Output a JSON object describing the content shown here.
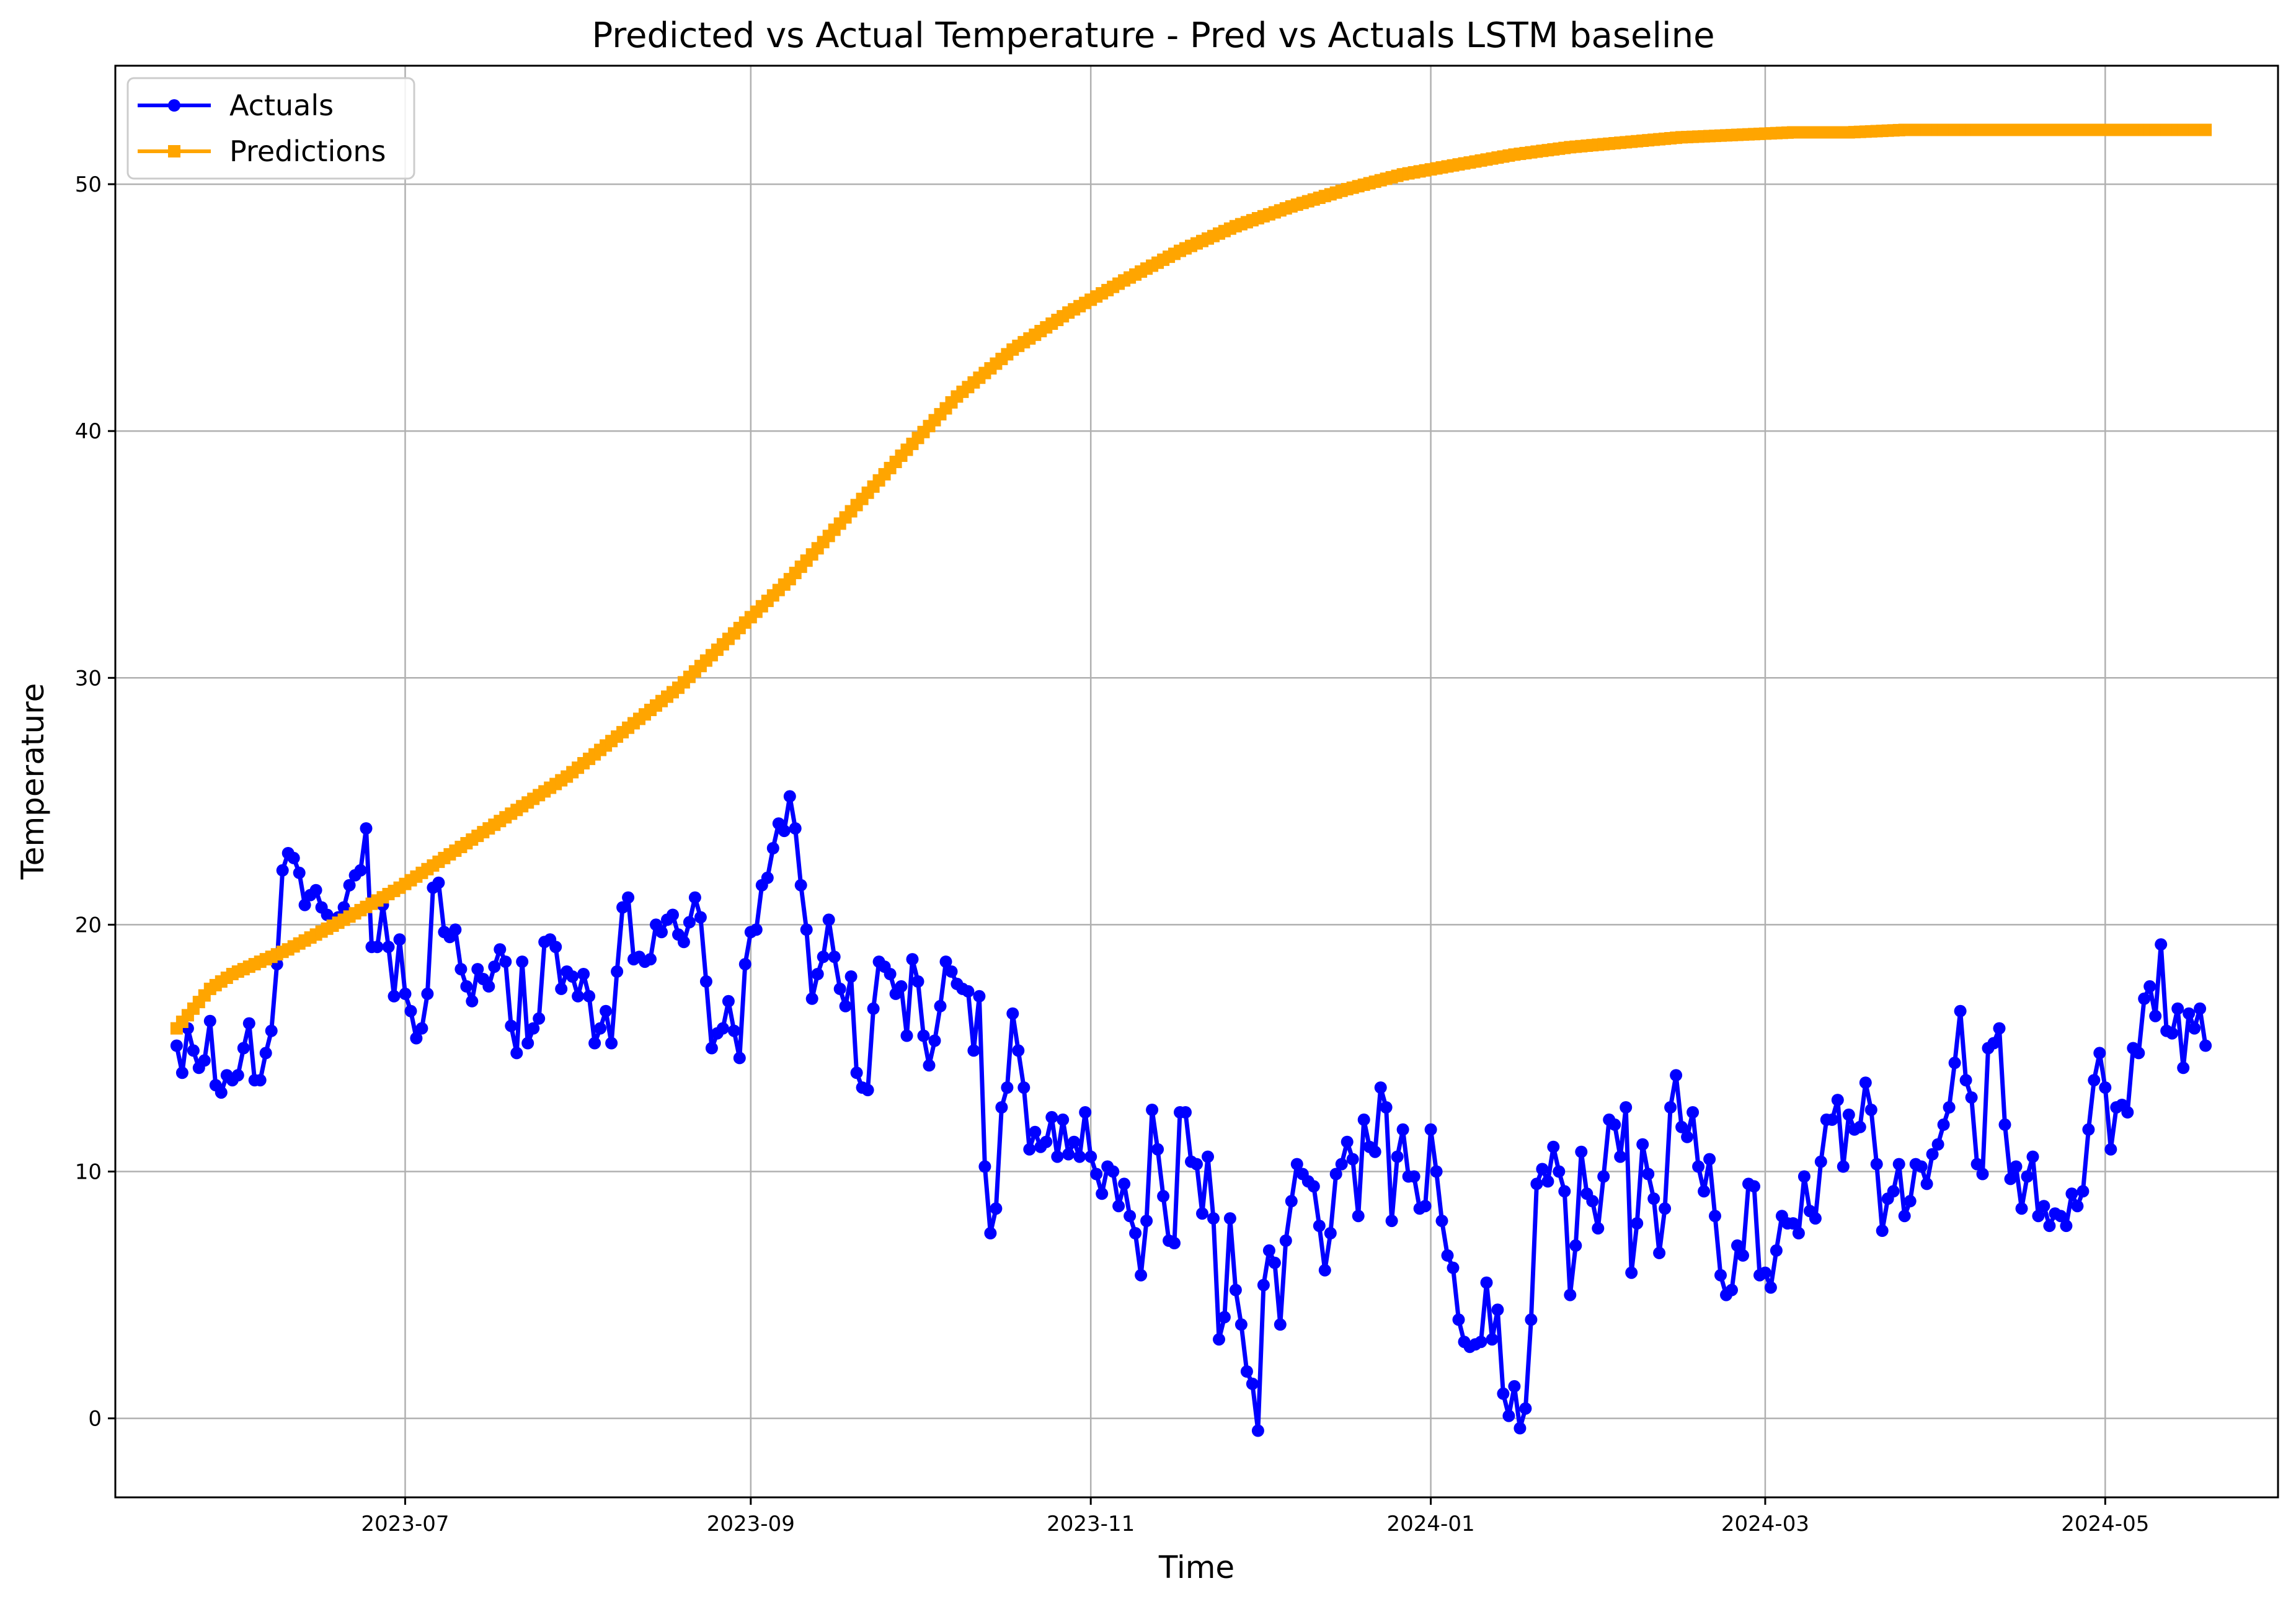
{
  "chart_data": {
    "type": "line",
    "title": "Predicted vs Actual Temperature - Pred vs Actuals LSTM baseline",
    "xlabel": "Time",
    "ylabel": "Temperature",
    "x_start": "2023-05-21",
    "x_end": "2024-05-21",
    "xlim": [
      "2023-05-10",
      "2024-06-01"
    ],
    "ylim": [
      -3.2,
      54.8
    ],
    "x_ticks": [
      {
        "date": "2023-07-01",
        "label": "2023-07"
      },
      {
        "date": "2023-09-01",
        "label": "2023-09"
      },
      {
        "date": "2023-11-01",
        "label": "2023-11"
      },
      {
        "date": "2024-01-01",
        "label": "2024-01"
      },
      {
        "date": "2024-03-01",
        "label": "2024-03"
      },
      {
        "date": "2024-05-01",
        "label": "2024-05"
      }
    ],
    "y_ticks": [
      0,
      10,
      20,
      30,
      40,
      50
    ],
    "grid": true,
    "legend_position": "top-left",
    "series": [
      {
        "name": "Actuals",
        "color": "#0000ff",
        "marker": "circle",
        "values": [
          15.1,
          14.0,
          15.8,
          14.9,
          14.2,
          14.5,
          16.1,
          13.5,
          13.2,
          13.9,
          13.7,
          13.9,
          15.0,
          16.0,
          13.7,
          13.7,
          14.8,
          15.7,
          18.4,
          22.2,
          22.9,
          22.7,
          22.1,
          20.8,
          21.2,
          21.4,
          20.7,
          20.4,
          20.2,
          20.3,
          20.7,
          21.6,
          22.0,
          22.2,
          23.9,
          19.1,
          19.1,
          20.8,
          19.1,
          17.1,
          19.4,
          17.2,
          16.5,
          15.4,
          15.8,
          17.2,
          21.5,
          21.7,
          19.7,
          19.5,
          19.8,
          18.2,
          17.5,
          16.9,
          18.2,
          17.8,
          17.5,
          18.3,
          19.0,
          18.5,
          15.9,
          14.8,
          18.5,
          15.2,
          15.8,
          16.2,
          19.3,
          19.4,
          19.1,
          17.4,
          18.1,
          17.9,
          17.1,
          18.0,
          17.1,
          15.2,
          15.8,
          16.5,
          15.2,
          18.1,
          20.7,
          21.1,
          18.6,
          18.7,
          18.5,
          18.6,
          20.0,
          19.7,
          20.2,
          20.4,
          19.6,
          19.3,
          20.1,
          21.1,
          20.3,
          17.7,
          15.0,
          15.6,
          15.8,
          16.9,
          15.7,
          14.6,
          18.4,
          19.7,
          19.8,
          21.6,
          21.9,
          23.1,
          24.1,
          23.8,
          25.2,
          23.9,
          21.6,
          19.8,
          17.0,
          18.0,
          18.7,
          20.2,
          18.7,
          17.4,
          16.7,
          17.9,
          14.0,
          13.4,
          13.3,
          16.6,
          18.5,
          18.3,
          18.0,
          17.2,
          17.5,
          15.5,
          18.6,
          17.7,
          15.5,
          14.3,
          15.3,
          16.7,
          18.5,
          18.1,
          17.6,
          17.4,
          17.3,
          14.9,
          17.1,
          10.2,
          7.5,
          8.5,
          12.6,
          13.4,
          16.4,
          14.9,
          13.4,
          10.9,
          11.6,
          11.0,
          11.2,
          12.2,
          10.6,
          12.1,
          10.7,
          11.2,
          10.6,
          12.4,
          10.6,
          9.9,
          9.1,
          10.2,
          10.0,
          8.6,
          9.5,
          8.2,
          7.5,
          5.8,
          8.0,
          12.5,
          10.9,
          9.0,
          7.2,
          7.1,
          12.4,
          12.4,
          10.4,
          10.3,
          8.3,
          10.6,
          8.1,
          3.2,
          4.1,
          8.1,
          5.2,
          3.8,
          1.9,
          1.4,
          -0.5,
          5.4,
          6.8,
          6.3,
          3.8,
          7.2,
          8.8,
          10.3,
          9.9,
          9.6,
          9.4,
          7.8,
          6.0,
          7.5,
          9.9,
          10.3,
          11.2,
          10.5,
          8.2,
          12.1,
          11.0,
          10.8,
          13.4,
          12.6,
          8.0,
          10.6,
          11.7,
          9.8,
          9.8,
          8.5,
          8.6,
          11.7,
          10.0,
          8.0,
          6.6,
          6.1,
          4.0,
          3.1,
          2.9,
          3.0,
          3.1,
          5.5,
          3.2,
          4.4,
          1.0,
          0.1,
          1.3,
          -0.4,
          0.4,
          4.0,
          9.5,
          10.1,
          9.6,
          11.0,
          10.0,
          9.2,
          5.0,
          7.0,
          10.8,
          9.1,
          8.8,
          7.7,
          9.8,
          12.1,
          11.9,
          10.6,
          12.6,
          5.9,
          7.9,
          11.1,
          9.9,
          8.9,
          6.7,
          8.5,
          12.6,
          13.9,
          11.8,
          11.4,
          12.4,
          10.2,
          9.2,
          10.5,
          8.2,
          5.8,
          5.0,
          5.2,
          7.0,
          6.6,
          9.5,
          9.4,
          5.8,
          5.9,
          5.3,
          6.8,
          8.2,
          7.9,
          7.9,
          7.5,
          9.8,
          8.4,
          8.1,
          10.4,
          12.1,
          12.1,
          12.9,
          10.2,
          12.3,
          11.7,
          11.8,
          13.6,
          12.5,
          10.3,
          7.6,
          8.9,
          9.2,
          10.3,
          8.2,
          8.8,
          10.3,
          10.2,
          9.5,
          10.7,
          11.1,
          11.9,
          12.6,
          14.4,
          16.5,
          13.7,
          13.0,
          10.3,
          9.9,
          15.0,
          15.2,
          15.8,
          11.9,
          9.7,
          10.2,
          8.5,
          9.8,
          10.6,
          8.2,
          8.6,
          7.8,
          8.3,
          8.2,
          7.8,
          9.1,
          8.6,
          9.2,
          11.7,
          13.7,
          14.8,
          13.4,
          10.9,
          12.6,
          12.7,
          12.4,
          15.0,
          14.8,
          17.0,
          17.5,
          16.3,
          19.2,
          15.7,
          15.6,
          16.6,
          14.2,
          16.4,
          15.8,
          16.6,
          15.1
        ]
      },
      {
        "name": "Predictions",
        "color": "#ffa500",
        "marker": "square",
        "anchors": [
          [
            0,
            15.8
          ],
          [
            3,
            16.6
          ],
          [
            6,
            17.4
          ],
          [
            10,
            18.0
          ],
          [
            20,
            19.0
          ],
          [
            30,
            20.2
          ],
          [
            40,
            21.5
          ],
          [
            50,
            23.0
          ],
          [
            60,
            24.5
          ],
          [
            70,
            26.0
          ],
          [
            80,
            27.8
          ],
          [
            90,
            29.6
          ],
          [
            100,
            31.8
          ],
          [
            110,
            34.0
          ],
          [
            120,
            36.5
          ],
          [
            130,
            39.0
          ],
          [
            140,
            41.4
          ],
          [
            150,
            43.3
          ],
          [
            160,
            44.8
          ],
          [
            170,
            46.1
          ],
          [
            180,
            47.3
          ],
          [
            190,
            48.3
          ],
          [
            200,
            49.1
          ],
          [
            210,
            49.8
          ],
          [
            220,
            50.4
          ],
          [
            230,
            50.8
          ],
          [
            240,
            51.2
          ],
          [
            250,
            51.5
          ],
          [
            260,
            51.7
          ],
          [
            270,
            51.9
          ],
          [
            280,
            52.0
          ],
          [
            290,
            52.1
          ],
          [
            300,
            52.1
          ],
          [
            310,
            52.2
          ],
          [
            320,
            52.2
          ],
          [
            330,
            52.2
          ],
          [
            340,
            52.2
          ],
          [
            350,
            52.2
          ],
          [
            360,
            52.2
          ],
          [
            366,
            52.2
          ]
        ]
      }
    ]
  }
}
